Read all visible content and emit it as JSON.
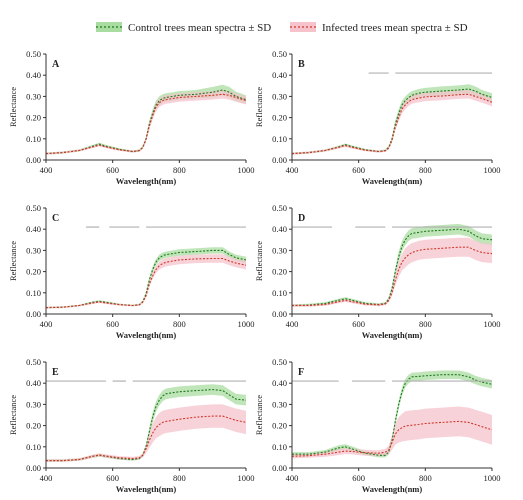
{
  "legend": {
    "control": {
      "label": "Control trees mean spectra ± SD",
      "line_color": "#1f7a1f",
      "band_color": "#a9dca0"
    },
    "infected": {
      "label": "Infected trees mean spectra ± SD",
      "line_color": "#d0392b",
      "band_color": "#f6c3cc"
    }
  },
  "colors": {
    "significance_bar": "#b0b0b0",
    "axis": "#333333"
  },
  "chart_data": [
    {
      "type": "line",
      "panel_label": "A",
      "xlabel": "Wavelength(nm)",
      "ylabel": "Reflectance",
      "xlim": [
        400,
        1000
      ],
      "ylim": [
        0,
        0.5
      ],
      "xticks": [
        "400",
        "600",
        "800",
        "1000"
      ],
      "yticks": [
        "0.00",
        "0.10",
        "0.20",
        "0.30",
        "0.40",
        "0.50"
      ],
      "x": [
        400,
        450,
        500,
        540,
        560,
        580,
        620,
        660,
        680,
        690,
        700,
        710,
        720,
        730,
        740,
        750,
        760,
        780,
        800,
        850,
        900,
        930,
        950,
        970,
        1000
      ],
      "series": [
        {
          "key": "control",
          "values": [
            0.03,
            0.035,
            0.045,
            0.065,
            0.075,
            0.065,
            0.05,
            0.04,
            0.045,
            0.06,
            0.1,
            0.17,
            0.22,
            0.26,
            0.28,
            0.29,
            0.295,
            0.3,
            0.305,
            0.31,
            0.32,
            0.33,
            0.32,
            0.3,
            0.285
          ],
          "sd": [
            0.005,
            0.005,
            0.005,
            0.006,
            0.006,
            0.006,
            0.005,
            0.005,
            0.005,
            0.006,
            0.01,
            0.015,
            0.02,
            0.02,
            0.02,
            0.02,
            0.02,
            0.02,
            0.02,
            0.02,
            0.025,
            0.025,
            0.025,
            0.022,
            0.02
          ]
        },
        {
          "key": "infected",
          "values": [
            0.03,
            0.035,
            0.045,
            0.062,
            0.07,
            0.062,
            0.048,
            0.04,
            0.044,
            0.058,
            0.095,
            0.16,
            0.21,
            0.25,
            0.27,
            0.28,
            0.285,
            0.29,
            0.295,
            0.3,
            0.305,
            0.31,
            0.305,
            0.295,
            0.28
          ],
          "sd": [
            0.005,
            0.005,
            0.005,
            0.006,
            0.006,
            0.006,
            0.005,
            0.005,
            0.005,
            0.006,
            0.01,
            0.015,
            0.018,
            0.02,
            0.02,
            0.02,
            0.02,
            0.02,
            0.02,
            0.02,
            0.02,
            0.02,
            0.02,
            0.02,
            0.018
          ]
        }
      ],
      "significance_ranges": []
    },
    {
      "type": "line",
      "panel_label": "B",
      "xlabel": "Wavelength(nm)",
      "ylabel": "Reflectance",
      "xlim": [
        400,
        1000
      ],
      "ylim": [
        0,
        0.5
      ],
      "xticks": [
        "400",
        "600",
        "800",
        "1000"
      ],
      "yticks": [
        "0.00",
        "0.10",
        "0.20",
        "0.30",
        "0.40",
        "0.50"
      ],
      "x": [
        400,
        450,
        500,
        540,
        560,
        580,
        620,
        660,
        680,
        690,
        700,
        710,
        720,
        730,
        740,
        750,
        760,
        780,
        800,
        850,
        900,
        930,
        950,
        970,
        1000
      ],
      "series": [
        {
          "key": "control",
          "values": [
            0.03,
            0.035,
            0.045,
            0.062,
            0.072,
            0.063,
            0.048,
            0.04,
            0.045,
            0.06,
            0.1,
            0.17,
            0.22,
            0.26,
            0.28,
            0.295,
            0.305,
            0.315,
            0.32,
            0.325,
            0.33,
            0.335,
            0.325,
            0.31,
            0.295
          ],
          "sd": [
            0.005,
            0.005,
            0.005,
            0.006,
            0.006,
            0.006,
            0.005,
            0.005,
            0.005,
            0.006,
            0.01,
            0.015,
            0.02,
            0.02,
            0.02,
            0.02,
            0.02,
            0.02,
            0.02,
            0.022,
            0.022,
            0.022,
            0.022,
            0.02,
            0.02
          ]
        },
        {
          "key": "infected",
          "values": [
            0.03,
            0.035,
            0.045,
            0.06,
            0.068,
            0.06,
            0.046,
            0.04,
            0.043,
            0.056,
            0.092,
            0.155,
            0.2,
            0.24,
            0.26,
            0.275,
            0.285,
            0.292,
            0.298,
            0.302,
            0.308,
            0.31,
            0.3,
            0.29,
            0.272
          ],
          "sd": [
            0.005,
            0.005,
            0.005,
            0.006,
            0.006,
            0.006,
            0.005,
            0.005,
            0.005,
            0.006,
            0.01,
            0.015,
            0.018,
            0.02,
            0.02,
            0.02,
            0.02,
            0.02,
            0.02,
            0.02,
            0.02,
            0.02,
            0.02,
            0.02,
            0.018
          ]
        }
      ],
      "significance_ranges": [
        [
          630,
          690
        ],
        [
          710,
          1000
        ]
      ]
    },
    {
      "type": "line",
      "panel_label": "C",
      "xlabel": "Wavelength(nm)",
      "ylabel": "Reflectance",
      "xlim": [
        400,
        1000
      ],
      "ylim": [
        0,
        0.5
      ],
      "xticks": [
        "400",
        "600",
        "800",
        "1000"
      ],
      "yticks": [
        "0.00",
        "0.10",
        "0.20",
        "0.30",
        "0.40",
        "0.50"
      ],
      "x": [
        400,
        450,
        500,
        540,
        560,
        580,
        620,
        660,
        680,
        690,
        700,
        710,
        720,
        730,
        740,
        750,
        760,
        780,
        800,
        850,
        900,
        930,
        950,
        970,
        1000
      ],
      "series": [
        {
          "key": "control",
          "values": [
            0.03,
            0.032,
            0.04,
            0.055,
            0.06,
            0.055,
            0.045,
            0.04,
            0.044,
            0.058,
            0.095,
            0.16,
            0.21,
            0.245,
            0.265,
            0.275,
            0.28,
            0.285,
            0.29,
            0.295,
            0.3,
            0.3,
            0.28,
            0.265,
            0.255
          ],
          "sd": [
            0.004,
            0.004,
            0.004,
            0.005,
            0.005,
            0.005,
            0.004,
            0.004,
            0.004,
            0.005,
            0.008,
            0.012,
            0.015,
            0.015,
            0.015,
            0.015,
            0.015,
            0.015,
            0.015,
            0.015,
            0.015,
            0.015,
            0.015,
            0.015,
            0.015
          ]
        },
        {
          "key": "infected",
          "values": [
            0.03,
            0.032,
            0.04,
            0.052,
            0.057,
            0.052,
            0.044,
            0.04,
            0.043,
            0.055,
            0.085,
            0.14,
            0.18,
            0.21,
            0.228,
            0.238,
            0.244,
            0.25,
            0.255,
            0.26,
            0.262,
            0.262,
            0.25,
            0.24,
            0.23
          ],
          "sd": [
            0.004,
            0.004,
            0.004,
            0.005,
            0.005,
            0.005,
            0.004,
            0.004,
            0.004,
            0.005,
            0.008,
            0.012,
            0.015,
            0.018,
            0.018,
            0.02,
            0.02,
            0.02,
            0.02,
            0.02,
            0.02,
            0.02,
            0.02,
            0.02,
            0.02
          ]
        }
      ],
      "significance_ranges": [
        [
          520,
          560
        ],
        [
          590,
          680
        ],
        [
          700,
          1000
        ]
      ]
    },
    {
      "type": "line",
      "panel_label": "D",
      "xlabel": "Wavelength(nm)",
      "ylabel": "Reflectance",
      "xlim": [
        400,
        1000
      ],
      "ylim": [
        0,
        0.5
      ],
      "xticks": [
        "400",
        "600",
        "800",
        "1000"
      ],
      "yticks": [
        "0.00",
        "0.10",
        "0.20",
        "0.30",
        "0.40",
        "0.50"
      ],
      "x": [
        400,
        450,
        500,
        540,
        560,
        580,
        620,
        660,
        680,
        690,
        700,
        710,
        720,
        730,
        740,
        750,
        760,
        780,
        800,
        850,
        900,
        930,
        950,
        970,
        1000
      ],
      "series": [
        {
          "key": "control",
          "values": [
            0.04,
            0.042,
            0.05,
            0.065,
            0.072,
            0.065,
            0.05,
            0.045,
            0.05,
            0.07,
            0.12,
            0.2,
            0.27,
            0.32,
            0.35,
            0.37,
            0.38,
            0.385,
            0.39,
            0.395,
            0.4,
            0.39,
            0.37,
            0.355,
            0.35
          ],
          "sd": [
            0.006,
            0.006,
            0.006,
            0.007,
            0.007,
            0.007,
            0.006,
            0.006,
            0.006,
            0.008,
            0.012,
            0.02,
            0.025,
            0.025,
            0.025,
            0.025,
            0.025,
            0.025,
            0.025,
            0.025,
            0.025,
            0.025,
            0.025,
            0.025,
            0.025
          ]
        },
        {
          "key": "infected",
          "values": [
            0.04,
            0.04,
            0.045,
            0.058,
            0.064,
            0.058,
            0.046,
            0.043,
            0.047,
            0.063,
            0.1,
            0.16,
            0.21,
            0.245,
            0.265,
            0.28,
            0.29,
            0.3,
            0.305,
            0.31,
            0.315,
            0.315,
            0.3,
            0.29,
            0.285
          ],
          "sd": [
            0.006,
            0.006,
            0.006,
            0.007,
            0.007,
            0.007,
            0.006,
            0.006,
            0.006,
            0.008,
            0.015,
            0.025,
            0.035,
            0.04,
            0.045,
            0.045,
            0.045,
            0.045,
            0.045,
            0.045,
            0.045,
            0.045,
            0.045,
            0.045,
            0.045
          ]
        }
      ],
      "significance_ranges": [
        [
          400,
          520
        ],
        [
          590,
          680
        ],
        [
          700,
          1000
        ]
      ]
    },
    {
      "type": "line",
      "panel_label": "E",
      "xlabel": "Wavelength(nm)",
      "ylabel": "Reflectance",
      "xlim": [
        400,
        1000
      ],
      "ylim": [
        0,
        0.5
      ],
      "xticks": [
        "400",
        "600",
        "800",
        "1000"
      ],
      "yticks": [
        "0.00",
        "0.10",
        "0.20",
        "0.30",
        "0.40",
        "0.50"
      ],
      "x": [
        400,
        450,
        500,
        540,
        560,
        580,
        620,
        660,
        680,
        690,
        700,
        710,
        720,
        730,
        740,
        750,
        760,
        780,
        800,
        850,
        900,
        930,
        950,
        970,
        1000
      ],
      "series": [
        {
          "key": "control",
          "values": [
            0.035,
            0.035,
            0.04,
            0.055,
            0.06,
            0.055,
            0.045,
            0.04,
            0.045,
            0.06,
            0.1,
            0.17,
            0.24,
            0.29,
            0.32,
            0.34,
            0.35,
            0.355,
            0.36,
            0.365,
            0.37,
            0.365,
            0.345,
            0.325,
            0.32
          ],
          "sd": [
            0.006,
            0.006,
            0.006,
            0.007,
            0.007,
            0.007,
            0.006,
            0.006,
            0.006,
            0.008,
            0.012,
            0.02,
            0.025,
            0.025,
            0.025,
            0.025,
            0.025,
            0.025,
            0.025,
            0.025,
            0.025,
            0.025,
            0.025,
            0.025,
            0.025
          ]
        },
        {
          "key": "infected",
          "values": [
            0.035,
            0.035,
            0.04,
            0.055,
            0.062,
            0.056,
            0.048,
            0.045,
            0.048,
            0.06,
            0.09,
            0.13,
            0.165,
            0.19,
            0.205,
            0.215,
            0.22,
            0.225,
            0.23,
            0.24,
            0.245,
            0.245,
            0.235,
            0.225,
            0.215
          ],
          "sd": [
            0.006,
            0.006,
            0.006,
            0.008,
            0.008,
            0.008,
            0.008,
            0.008,
            0.008,
            0.01,
            0.02,
            0.035,
            0.045,
            0.05,
            0.055,
            0.055,
            0.055,
            0.055,
            0.055,
            0.055,
            0.055,
            0.055,
            0.055,
            0.055,
            0.055
          ]
        }
      ],
      "significance_ranges": [
        [
          400,
          580
        ],
        [
          600,
          640
        ],
        [
          660,
          1000
        ]
      ]
    },
    {
      "type": "line",
      "panel_label": "F",
      "xlabel": "Wavelength(nm)",
      "ylabel": "Reflectance",
      "xlim": [
        400,
        1000
      ],
      "ylim": [
        0,
        0.5
      ],
      "xticks": [
        "400",
        "600",
        "800",
        "1000"
      ],
      "yticks": [
        "0.00",
        "0.10",
        "0.20",
        "0.30",
        "0.40",
        "0.50"
      ],
      "x": [
        400,
        450,
        500,
        540,
        560,
        580,
        620,
        660,
        680,
        690,
        700,
        710,
        720,
        730,
        740,
        750,
        760,
        780,
        800,
        850,
        900,
        930,
        950,
        970,
        1000
      ],
      "series": [
        {
          "key": "control",
          "values": [
            0.065,
            0.065,
            0.075,
            0.095,
            0.1,
            0.09,
            0.07,
            0.06,
            0.06,
            0.075,
            0.13,
            0.22,
            0.3,
            0.36,
            0.4,
            0.42,
            0.43,
            0.432,
            0.435,
            0.44,
            0.44,
            0.43,
            0.415,
            0.405,
            0.395
          ],
          "sd": [
            0.01,
            0.01,
            0.01,
            0.012,
            0.012,
            0.012,
            0.01,
            0.01,
            0.01,
            0.012,
            0.015,
            0.02,
            0.02,
            0.02,
            0.02,
            0.02,
            0.02,
            0.02,
            0.02,
            0.02,
            0.02,
            0.02,
            0.02,
            0.02,
            0.02
          ]
        },
        {
          "key": "infected",
          "values": [
            0.055,
            0.058,
            0.065,
            0.075,
            0.08,
            0.078,
            0.072,
            0.07,
            0.075,
            0.085,
            0.12,
            0.16,
            0.18,
            0.19,
            0.198,
            0.2,
            0.202,
            0.205,
            0.21,
            0.215,
            0.22,
            0.215,
            0.205,
            0.195,
            0.18
          ],
          "sd": [
            0.01,
            0.01,
            0.012,
            0.014,
            0.014,
            0.014,
            0.014,
            0.014,
            0.016,
            0.02,
            0.035,
            0.05,
            0.06,
            0.065,
            0.07,
            0.07,
            0.07,
            0.07,
            0.07,
            0.07,
            0.07,
            0.07,
            0.07,
            0.07,
            0.07
          ]
        }
      ],
      "significance_ranges": [
        [
          400,
          540
        ],
        [
          580,
          680
        ],
        [
          700,
          1000
        ]
      ]
    }
  ]
}
